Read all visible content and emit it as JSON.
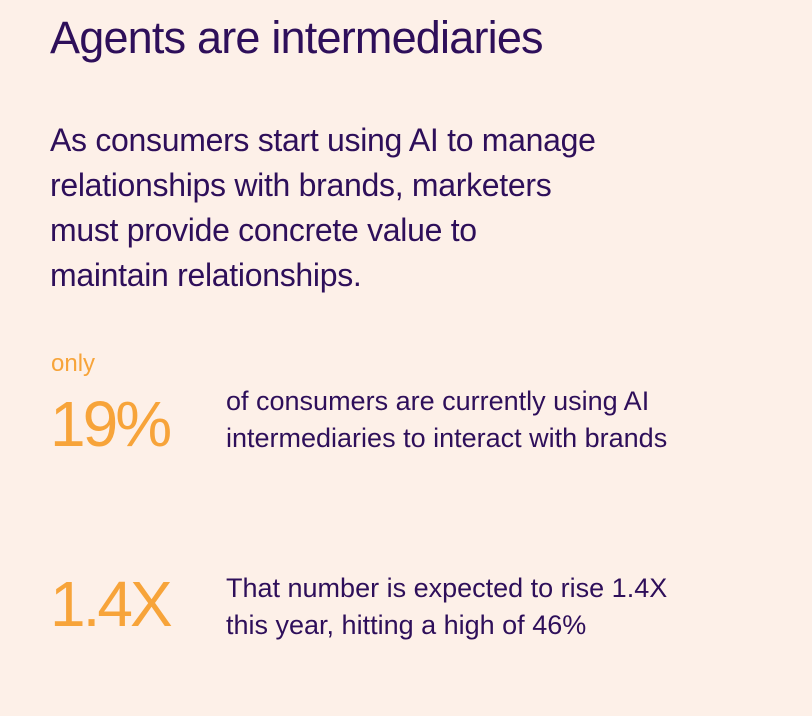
{
  "title": "Agents are intermediaries",
  "intro_lines": [
    "As consumers start using AI to manage",
    "relationships with brands, marketers",
    "must provide concrete value to",
    "maintain relationships."
  ],
  "stats": [
    {
      "qualifier": "only",
      "value": "19%",
      "description_lines": [
        "of consumers are currently using AI",
        "intermediaries to interact with brands"
      ]
    },
    {
      "value": "1.4X",
      "description_lines": [
        "That number is expected to rise 1.4X",
        "this year, hitting a high of 46%"
      ]
    }
  ],
  "colors": {
    "background": "#FDF0E8",
    "text": "#2E0F5A",
    "accent": "#F7A43A"
  }
}
